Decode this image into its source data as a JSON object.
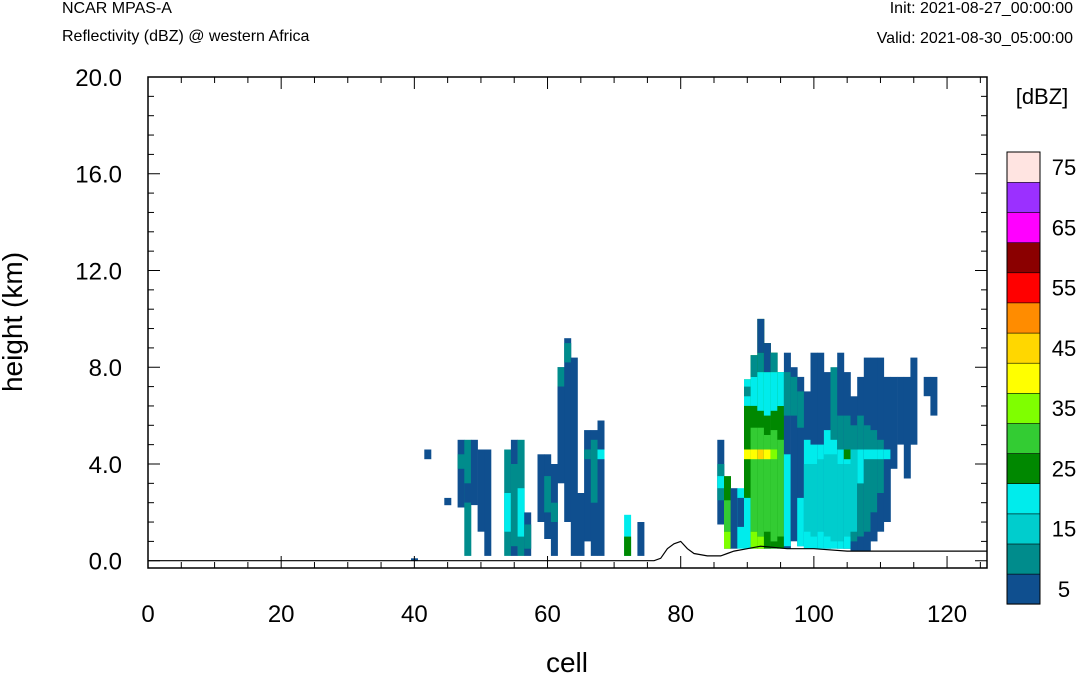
{
  "header": {
    "model": "NCAR MPAS-A",
    "subtitle": "Reflectivity (dBZ) @ western Africa",
    "init": "Init: 2021-08-27_00:00:00",
    "valid": "Valid: 2021-08-30_05:00:00"
  },
  "chart_data": {
    "type": "heatmap",
    "title": "Reflectivity (dBZ) @ western Africa",
    "xlabel": "cell",
    "ylabel": "height (km)",
    "xlim": [
      0,
      126
    ],
    "ylim": [
      -0.3,
      20.0
    ],
    "xticks": [
      "0",
      "20",
      "40",
      "60",
      "80",
      "100",
      "120"
    ],
    "yticks": [
      "0.0",
      "4.0",
      "8.0",
      "12.0",
      "16.0",
      "20.0"
    ],
    "colorbar": {
      "title": "[dBZ]",
      "labels": [
        "5",
        "15",
        "25",
        "35",
        "45",
        "55",
        "65",
        "75"
      ],
      "bins": [
        {
          "dbz": 5,
          "color": "#0f4f8f"
        },
        {
          "dbz": 10,
          "color": "#008c8c"
        },
        {
          "dbz": 15,
          "color": "#00cdcd"
        },
        {
          "dbz": 20,
          "color": "#00ecec"
        },
        {
          "dbz": 25,
          "color": "#008800"
        },
        {
          "dbz": 30,
          "color": "#33cc33"
        },
        {
          "dbz": 35,
          "color": "#7fff00"
        },
        {
          "dbz": 40,
          "color": "#ffff00"
        },
        {
          "dbz": 45,
          "color": "#ffd700"
        },
        {
          "dbz": 50,
          "color": "#ff8c00"
        },
        {
          "dbz": 55,
          "color": "#ff0000"
        },
        {
          "dbz": 60,
          "color": "#8b0000"
        },
        {
          "dbz": 65,
          "color": "#ff00ff"
        },
        {
          "dbz": 70,
          "color": "#9b30ff"
        },
        {
          "dbz": 75,
          "color": "#ffe4e1"
        }
      ]
    },
    "columns": [
      {
        "x": 40,
        "cells": [
          [
            0.0,
            0.1,
            5
          ]
        ]
      },
      {
        "x": 42,
        "cells": [
          [
            4.2,
            4.6,
            5
          ]
        ]
      },
      {
        "x": 45,
        "cells": [
          [
            2.3,
            2.6,
            5
          ]
        ]
      },
      {
        "x": 47,
        "cells": [
          [
            2.2,
            5.0,
            5
          ],
          [
            3.8,
            4.4,
            10
          ]
        ]
      },
      {
        "x": 48,
        "cells": [
          [
            0.2,
            5.0,
            10
          ],
          [
            2.4,
            3.2,
            5
          ]
        ]
      },
      {
        "x": 49,
        "cells": [
          [
            2.3,
            5.0,
            5
          ]
        ]
      },
      {
        "x": 50,
        "cells": [
          [
            1.2,
            4.6,
            5
          ]
        ]
      },
      {
        "x": 51,
        "cells": [
          [
            0.2,
            4.6,
            5
          ]
        ]
      },
      {
        "x": 54,
        "cells": [
          [
            0.2,
            4.6,
            10
          ],
          [
            1.2,
            2.8,
            20
          ]
        ]
      },
      {
        "x": 55,
        "cells": [
          [
            0.2,
            5.0,
            5
          ],
          [
            0.6,
            4.0,
            10
          ]
        ]
      },
      {
        "x": 56,
        "cells": [
          [
            0.2,
            5.0,
            10
          ],
          [
            1.0,
            3.0,
            20
          ]
        ]
      },
      {
        "x": 57,
        "cells": [
          [
            0.2,
            2.0,
            5
          ],
          [
            0.5,
            1.5,
            10
          ]
        ]
      },
      {
        "x": 59,
        "cells": [
          [
            1.6,
            4.4,
            5
          ]
        ]
      },
      {
        "x": 60,
        "cells": [
          [
            0.9,
            4.4,
            5
          ],
          [
            2.0,
            3.5,
            10
          ]
        ]
      },
      {
        "x": 61,
        "cells": [
          [
            0.2,
            4.0,
            5
          ],
          [
            1.6,
            2.4,
            10
          ]
        ]
      },
      {
        "x": 62,
        "cells": [
          [
            3.2,
            8.0,
            5
          ],
          [
            7.2,
            8.0,
            10
          ]
        ]
      },
      {
        "x": 63,
        "cells": [
          [
            1.6,
            9.2,
            5
          ],
          [
            8.2,
            9.0,
            10
          ]
        ]
      },
      {
        "x": 64,
        "cells": [
          [
            0.2,
            8.4,
            5
          ]
        ]
      },
      {
        "x": 65,
        "cells": [
          [
            0.2,
            2.8,
            5
          ]
        ]
      },
      {
        "x": 66,
        "cells": [
          [
            0.8,
            5.4,
            5
          ],
          [
            4.2,
            4.6,
            10
          ]
        ]
      },
      {
        "x": 67,
        "cells": [
          [
            0.2,
            5.4,
            5
          ],
          [
            2.4,
            5.0,
            10
          ]
        ]
      },
      {
        "x": 68,
        "cells": [
          [
            0.2,
            5.8,
            5
          ],
          [
            4.2,
            4.6,
            20
          ]
        ]
      },
      {
        "x": 72,
        "cells": [
          [
            0.2,
            1.9,
            20
          ],
          [
            0.2,
            1.0,
            25
          ]
        ]
      },
      {
        "x": 74,
        "cells": [
          [
            0.2,
            1.6,
            5
          ]
        ]
      },
      {
        "x": 86,
        "cells": [
          [
            1.5,
            5.0,
            5
          ],
          [
            2.5,
            4.0,
            10
          ],
          [
            3.0,
            3.5,
            20
          ]
        ]
      },
      {
        "x": 87,
        "cells": [
          [
            0.5,
            3.5,
            25
          ],
          [
            1.2,
            2.5,
            30
          ],
          [
            0.5,
            1.2,
            35
          ]
        ]
      },
      {
        "x": 88,
        "cells": [
          [
            0.5,
            3.0,
            5
          ]
        ]
      },
      {
        "x": 89,
        "cells": [
          [
            0.5,
            3.0,
            20
          ],
          [
            1.4,
            2.6,
            5
          ]
        ]
      },
      {
        "x": 90,
        "cells": [
          [
            0.5,
            7.5,
            25
          ],
          [
            0.5,
            2.6,
            20
          ],
          [
            6.4,
            7.5,
            20
          ],
          [
            4.2,
            4.6,
            40
          ],
          [
            6.8,
            7.2,
            10
          ]
        ]
      },
      {
        "x": 91,
        "cells": [
          [
            0.5,
            8.5,
            25
          ],
          [
            1.2,
            5.5,
            30
          ],
          [
            4.2,
            4.6,
            40
          ],
          [
            0.5,
            1.2,
            35
          ],
          [
            6.4,
            7.6,
            20
          ],
          [
            7.6,
            8.5,
            10
          ]
        ]
      },
      {
        "x": 92,
        "cells": [
          [
            0.5,
            10.0,
            25
          ],
          [
            1.0,
            5.5,
            30
          ],
          [
            4.2,
            4.6,
            45
          ],
          [
            0.5,
            1.0,
            35
          ],
          [
            6.2,
            7.8,
            20
          ],
          [
            7.8,
            8.6,
            10
          ],
          [
            8.6,
            10.0,
            5
          ]
        ]
      },
      {
        "x": 93,
        "cells": [
          [
            0.5,
            9.0,
            25
          ],
          [
            1.2,
            5.2,
            30
          ],
          [
            4.2,
            4.6,
            40
          ],
          [
            6.0,
            7.8,
            20
          ],
          [
            7.8,
            9.0,
            5
          ]
        ]
      },
      {
        "x": 94,
        "cells": [
          [
            0.5,
            8.6,
            25
          ],
          [
            0.8,
            5.4,
            30
          ],
          [
            4.2,
            4.6,
            35
          ],
          [
            6.2,
            7.8,
            20
          ],
          [
            7.8,
            8.6,
            10
          ]
        ]
      },
      {
        "x": 95,
        "cells": [
          [
            0.5,
            7.8,
            25
          ],
          [
            1.0,
            5.0,
            30
          ],
          [
            6.4,
            7.8,
            20
          ]
        ]
      },
      {
        "x": 96,
        "cells": [
          [
            0.5,
            8.6,
            5
          ],
          [
            0.6,
            4.4,
            20
          ],
          [
            6.0,
            7.8,
            10
          ]
        ]
      },
      {
        "x": 97,
        "cells": [
          [
            0.8,
            8.0,
            5
          ],
          [
            6.0,
            7.6,
            10
          ]
        ]
      },
      {
        "x": 98,
        "cells": [
          [
            0.6,
            7.6,
            5
          ],
          [
            0.6,
            2.6,
            20
          ],
          [
            5.5,
            7.0,
            10
          ]
        ]
      },
      {
        "x": 99,
        "cells": [
          [
            0.5,
            7.0,
            5
          ],
          [
            0.5,
            5.0,
            20
          ],
          [
            1.2,
            4.0,
            15
          ]
        ]
      },
      {
        "x": 100,
        "cells": [
          [
            0.5,
            8.6,
            5
          ],
          [
            0.5,
            4.8,
            20
          ],
          [
            1.0,
            4.0,
            15
          ]
        ]
      },
      {
        "x": 101,
        "cells": [
          [
            0.5,
            8.6,
            5
          ],
          [
            0.5,
            4.8,
            20
          ],
          [
            1.2,
            4.2,
            15
          ]
        ]
      },
      {
        "x": 102,
        "cells": [
          [
            0.5,
            7.8,
            5
          ],
          [
            0.5,
            5.4,
            20
          ],
          [
            1.0,
            4.4,
            15
          ]
        ]
      },
      {
        "x": 103,
        "cells": [
          [
            0.5,
            8.0,
            10
          ],
          [
            0.5,
            5.0,
            20
          ],
          [
            0.8,
            4.4,
            15
          ]
        ]
      },
      {
        "x": 104,
        "cells": [
          [
            0.5,
            8.6,
            5
          ],
          [
            0.5,
            6.0,
            10
          ],
          [
            0.5,
            4.6,
            20
          ],
          [
            0.8,
            4.0,
            15
          ]
        ]
      },
      {
        "x": 105,
        "cells": [
          [
            0.5,
            7.8,
            5
          ],
          [
            0.5,
            6.0,
            10
          ],
          [
            0.5,
            4.6,
            20
          ],
          [
            1.0,
            4.0,
            15
          ],
          [
            4.2,
            4.6,
            25
          ]
        ]
      },
      {
        "x": 106,
        "cells": [
          [
            0.4,
            6.8,
            5
          ],
          [
            0.8,
            5.6,
            10
          ],
          [
            1.2,
            4.6,
            15
          ]
        ]
      },
      {
        "x": 107,
        "cells": [
          [
            0.4,
            7.6,
            5
          ],
          [
            1.0,
            6.0,
            10
          ],
          [
            3.2,
            4.6,
            20
          ]
        ]
      },
      {
        "x": 108,
        "cells": [
          [
            0.4,
            8.4,
            5
          ],
          [
            1.2,
            5.6,
            10
          ],
          [
            4.2,
            4.6,
            20
          ]
        ]
      },
      {
        "x": 109,
        "cells": [
          [
            0.8,
            8.4,
            5
          ],
          [
            2.0,
            5.4,
            10
          ],
          [
            4.2,
            4.6,
            20
          ]
        ]
      },
      {
        "x": 110,
        "cells": [
          [
            1.2,
            8.4,
            5
          ],
          [
            2.8,
            5.0,
            10
          ],
          [
            4.2,
            4.6,
            20
          ]
        ]
      },
      {
        "x": 111,
        "cells": [
          [
            1.6,
            7.6,
            5
          ],
          [
            4.2,
            4.6,
            20
          ]
        ]
      },
      {
        "x": 112,
        "cells": [
          [
            3.8,
            7.6,
            5
          ]
        ]
      },
      {
        "x": 113,
        "cells": [
          [
            4.8,
            7.6,
            5
          ]
        ]
      },
      {
        "x": 114,
        "cells": [
          [
            3.4,
            7.6,
            5
          ]
        ]
      },
      {
        "x": 115,
        "cells": [
          [
            4.8,
            8.4,
            5
          ]
        ]
      },
      {
        "x": 117,
        "cells": [
          [
            6.8,
            7.6,
            5
          ]
        ]
      },
      {
        "x": 118,
        "cells": [
          [
            6.0,
            7.6,
            5
          ]
        ]
      }
    ],
    "terrain": [
      [
        0,
        0.0
      ],
      [
        76,
        0.0
      ],
      [
        77,
        0.1
      ],
      [
        78,
        0.5
      ],
      [
        79,
        0.7
      ],
      [
        80,
        0.8
      ],
      [
        81,
        0.5
      ],
      [
        82,
        0.3
      ],
      [
        84,
        0.2
      ],
      [
        86,
        0.2
      ],
      [
        87,
        0.3
      ],
      [
        88,
        0.4
      ],
      [
        90,
        0.5
      ],
      [
        92,
        0.6
      ],
      [
        96,
        0.5
      ],
      [
        100,
        0.5
      ],
      [
        105,
        0.4
      ],
      [
        110,
        0.4
      ],
      [
        115,
        0.4
      ],
      [
        120,
        0.4
      ],
      [
        126,
        0.4
      ]
    ]
  }
}
